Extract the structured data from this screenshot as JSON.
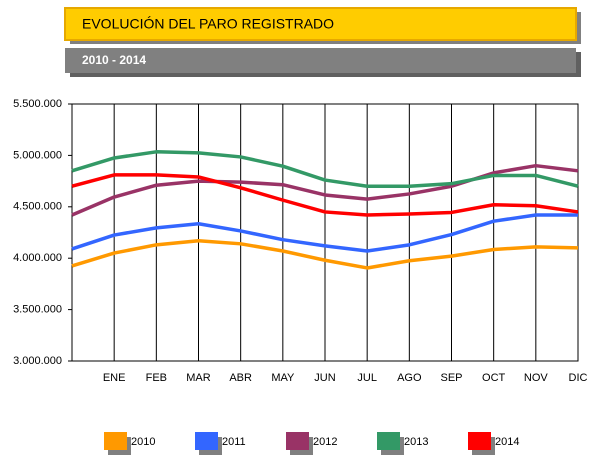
{
  "chart_data": {
    "type": "line",
    "title": "EVOLUCIÓN DEL PARO REGISTRADO",
    "subtitle": "2010 - 2014",
    "categories": [
      null,
      "ENE",
      "FEB",
      "MAR",
      "ABR",
      "MAY",
      "JUN",
      "JUL",
      "AGO",
      "SEP",
      "OCT",
      "NOV",
      "DIC"
    ],
    "series": [
      {
        "name": "2010",
        "color": "#ff9900",
        "values": [
          3925000,
          4050000,
          4130000,
          4170000,
          4140000,
          4070000,
          3980000,
          3905000,
          3975000,
          4020000,
          4085000,
          4110000,
          4100000
        ]
      },
      {
        "name": "2011",
        "color": "#3366ff",
        "values": [
          4090000,
          4225000,
          4295000,
          4335000,
          4265000,
          4180000,
          4120000,
          4070000,
          4130000,
          4230000,
          4360000,
          4420000,
          4420000
        ]
      },
      {
        "name": "2012",
        "color": "#993366",
        "values": [
          4420000,
          4595000,
          4710000,
          4750000,
          4740000,
          4715000,
          4615000,
          4575000,
          4625000,
          4700000,
          4830000,
          4900000,
          4850000
        ]
      },
      {
        "name": "2013",
        "color": "#339966",
        "values": [
          4850000,
          4975000,
          5035000,
          5025000,
          4985000,
          4895000,
          4760000,
          4700000,
          4700000,
          4725000,
          4805000,
          4805000,
          4700000
        ]
      },
      {
        "name": "2014",
        "color": "#ff0000",
        "values": [
          4700000,
          4810000,
          4810000,
          4790000,
          4685000,
          4565000,
          4450000,
          4420000,
          4430000,
          4445000,
          4520000,
          4510000,
          4450000
        ]
      }
    ],
    "ylim": [
      3000000,
      5500000
    ],
    "yticks": [
      {
        "value": 3000000,
        "label": "3.000.000"
      },
      {
        "value": 3500000,
        "label": "3.500.000"
      },
      {
        "value": 4000000,
        "label": "4.000.000"
      },
      {
        "value": 4500000,
        "label": "4.500.000"
      },
      {
        "value": 5000000,
        "label": "5.000.000"
      },
      {
        "value": 5500000,
        "label": "5.500.000"
      }
    ],
    "grid": true,
    "legend": "bottom"
  }
}
